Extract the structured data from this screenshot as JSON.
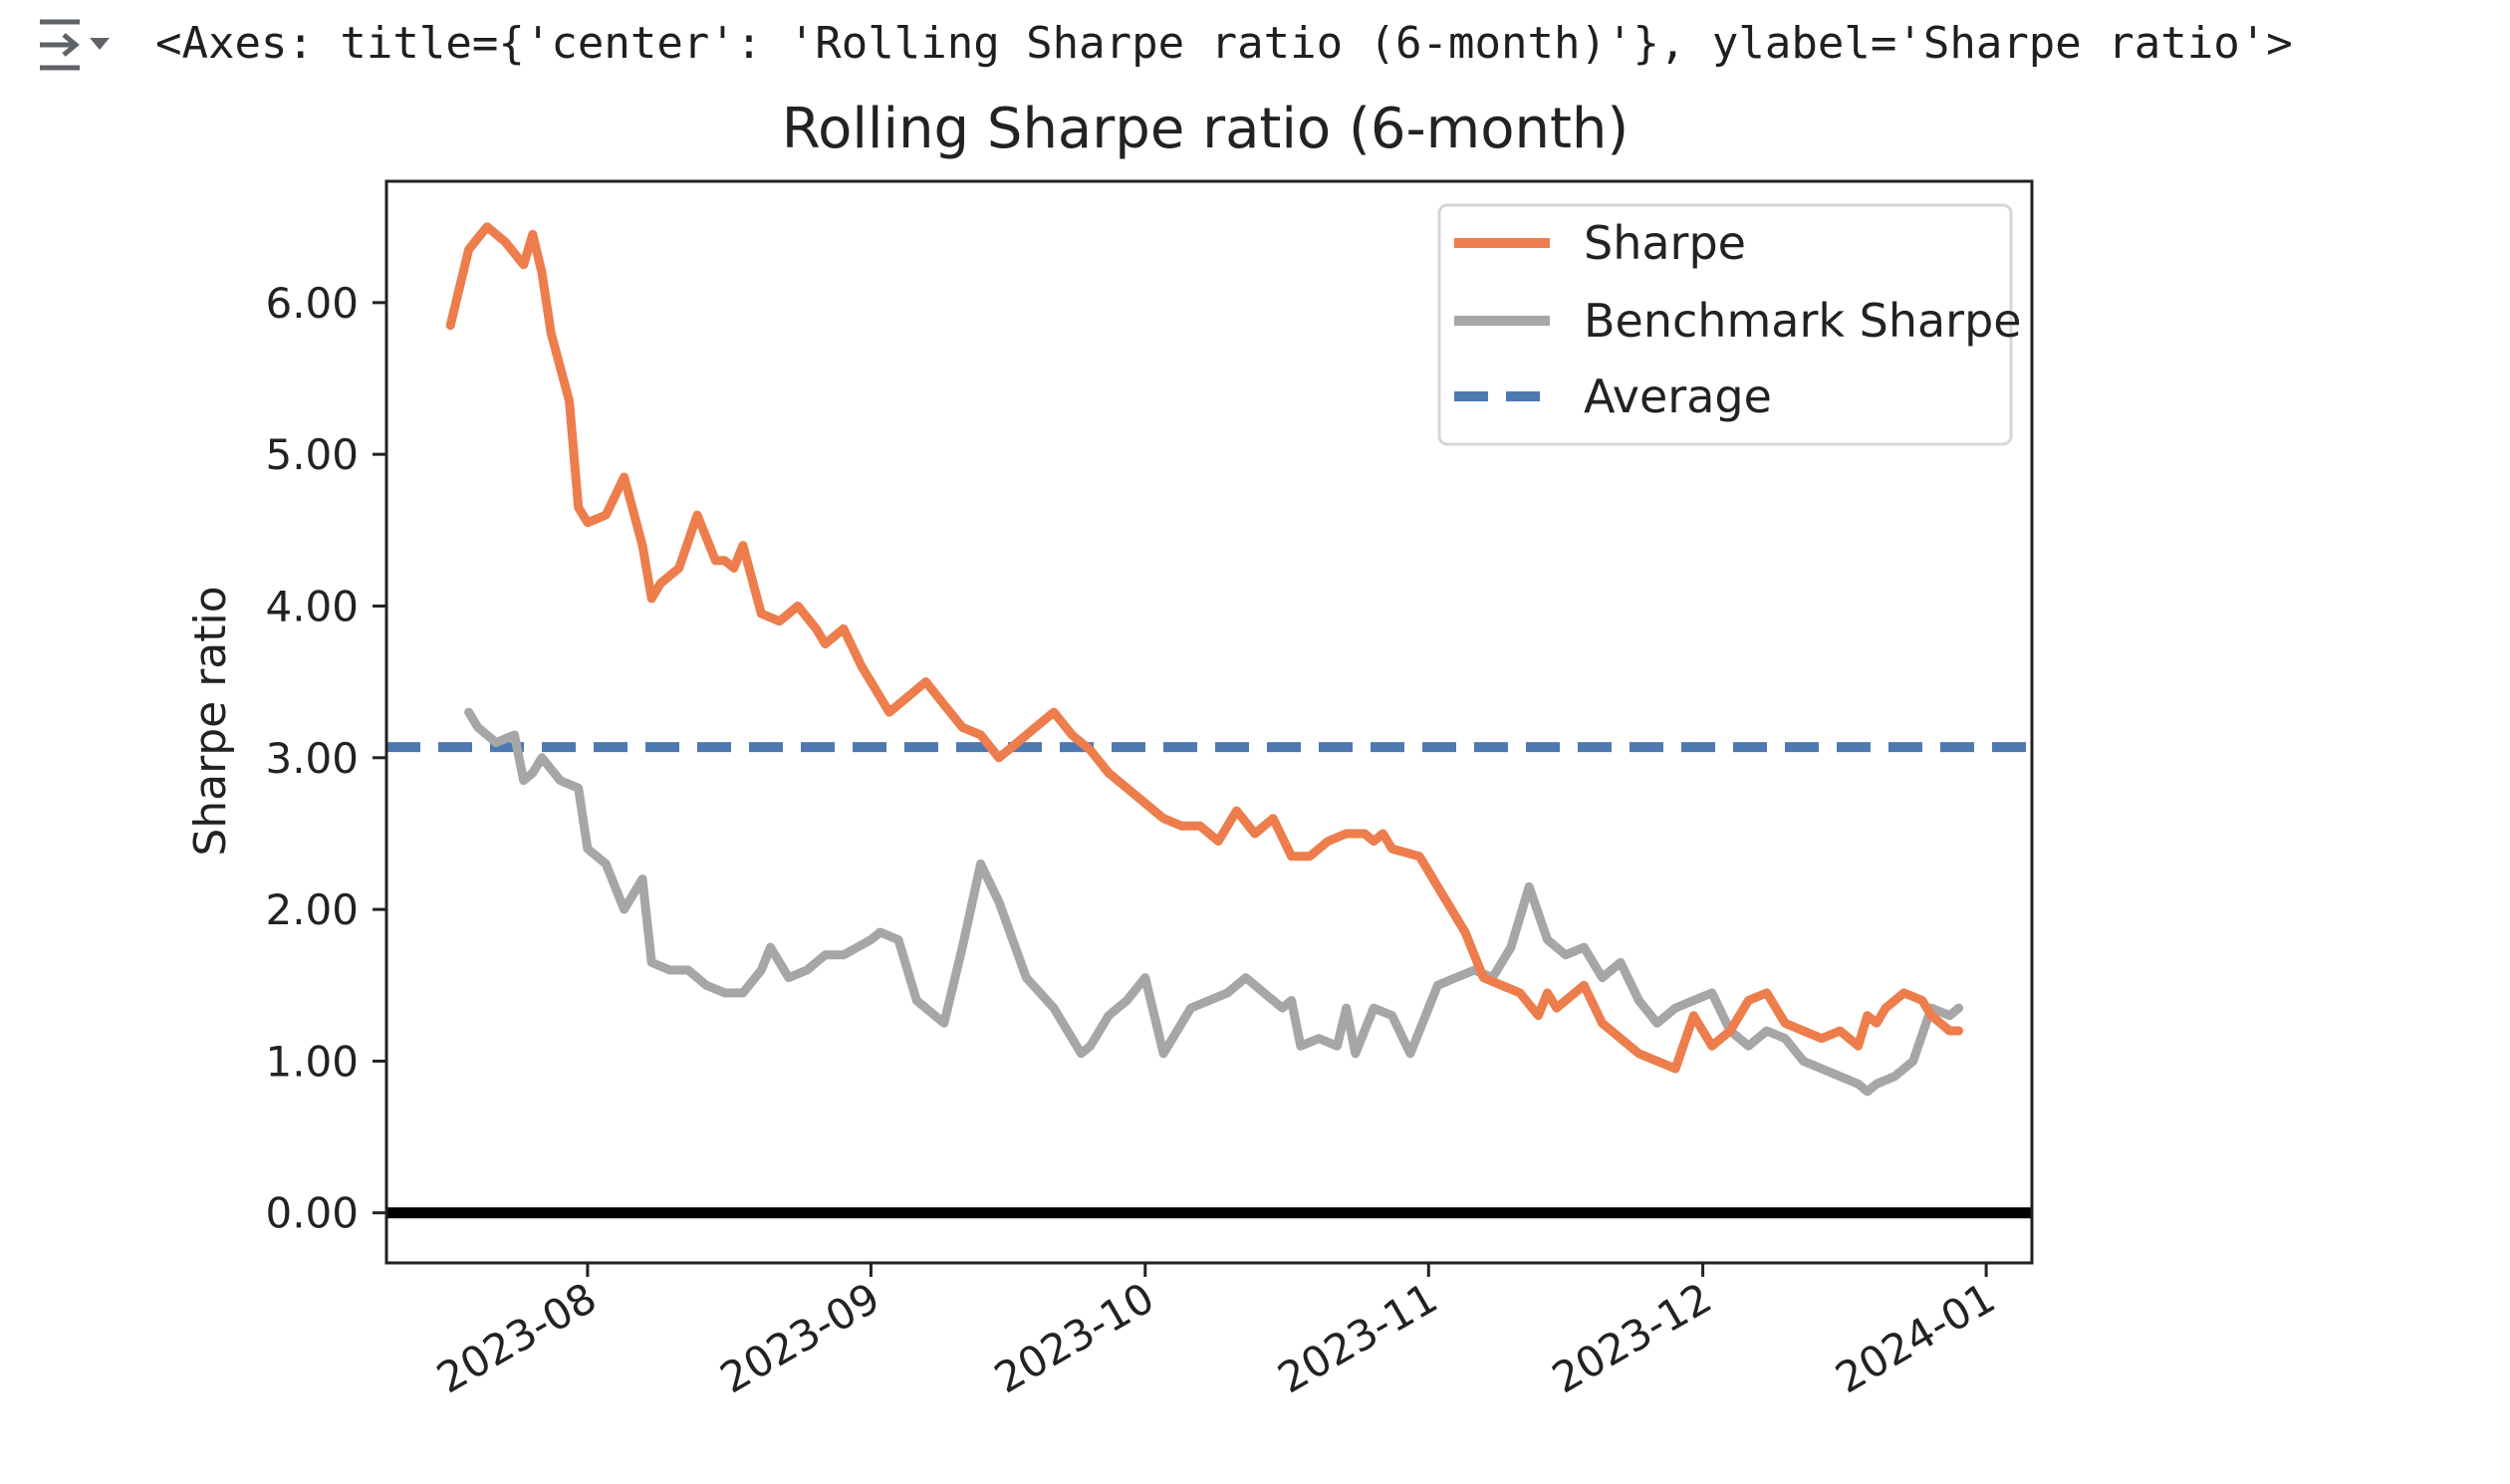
{
  "output": {
    "repr": "<Axes: title={'center': 'Rolling Sharpe ratio (6-month)'}, ylabel='Sharpe ratio'>",
    "icon": "output-toggle-icon"
  },
  "chart_data": {
    "type": "line",
    "title": "Rolling Sharpe ratio (6-month)",
    "xlabel": "",
    "ylabel": "Sharpe ratio",
    "xlim": [
      "2023-07-10",
      "2024-01-06"
    ],
    "ylim": [
      -0.33,
      6.8
    ],
    "x_ticks": [
      "2023-08-01",
      "2023-09-01",
      "2023-10-01",
      "2023-11-01",
      "2023-12-01",
      "2024-01-01"
    ],
    "x_tick_labels": [
      "2023-08",
      "2023-09",
      "2023-10",
      "2023-11",
      "2023-12",
      "2024-01"
    ],
    "y_ticks": [
      0,
      1,
      2,
      3,
      4,
      5,
      6
    ],
    "y_tick_labels": [
      "0.00",
      "1.00",
      "2.00",
      "3.00",
      "4.00",
      "5.00",
      "6.00"
    ],
    "grid": false,
    "legend": "top-right",
    "zero_line": 0,
    "colors": {
      "sharpe": "#ed7d4c",
      "benchmark": "#a6a6a6",
      "average": "#4e79b0",
      "zero": "#000000"
    },
    "series": [
      {
        "name": "Sharpe",
        "key": "sharpe",
        "x": [
          "2023-07-17",
          "2023-07-19",
          "2023-07-21",
          "2023-07-23",
          "2023-07-25",
          "2023-07-26",
          "2023-07-27",
          "2023-07-28",
          "2023-07-30",
          "2023-07-31",
          "2023-08-01",
          "2023-08-03",
          "2023-08-05",
          "2023-08-07",
          "2023-08-08",
          "2023-08-09",
          "2023-08-11",
          "2023-08-13",
          "2023-08-15",
          "2023-08-16",
          "2023-08-17",
          "2023-08-18",
          "2023-08-20",
          "2023-08-22",
          "2023-08-24",
          "2023-08-26",
          "2023-08-27",
          "2023-08-29",
          "2023-08-31",
          "2023-09-01",
          "2023-09-03",
          "2023-09-04",
          "2023-09-07",
          "2023-09-09",
          "2023-09-11",
          "2023-09-13",
          "2023-09-15",
          "2023-09-17",
          "2023-09-19",
          "2023-09-21",
          "2023-09-23",
          "2023-09-25",
          "2023-09-27",
          "2023-10-01",
          "2023-10-03",
          "2023-10-05",
          "2023-10-07",
          "2023-10-09",
          "2023-10-11",
          "2023-10-13",
          "2023-10-15",
          "2023-10-17",
          "2023-10-19",
          "2023-10-21",
          "2023-10-23",
          "2023-10-25",
          "2023-10-26",
          "2023-10-27",
          "2023-10-28",
          "2023-10-31",
          "2023-11-01",
          "2023-11-03",
          "2023-11-05",
          "2023-11-07",
          "2023-11-09",
          "2023-11-11",
          "2023-11-13",
          "2023-11-14",
          "2023-11-15",
          "2023-11-16",
          "2023-11-18",
          "2023-11-20",
          "2023-11-22",
          "2023-11-24",
          "2023-11-26",
          "2023-11-28",
          "2023-11-30",
          "2023-12-02",
          "2023-12-04",
          "2023-12-05",
          "2023-12-06",
          "2023-12-08",
          "2023-12-09",
          "2023-12-10",
          "2023-12-12",
          "2023-12-14",
          "2023-12-16",
          "2023-12-18",
          "2023-12-19",
          "2023-12-20",
          "2023-12-21",
          "2023-12-23",
          "2023-12-25",
          "2023-12-26",
          "2023-12-27",
          "2023-12-28",
          "2023-12-29"
        ],
        "values": [
          5.85,
          6.35,
          6.5,
          6.4,
          6.25,
          6.45,
          6.2,
          5.8,
          5.35,
          4.65,
          4.55,
          4.6,
          4.85,
          4.4,
          4.05,
          4.15,
          4.25,
          4.6,
          4.3,
          4.3,
          4.25,
          4.4,
          3.95,
          3.9,
          4.0,
          3.85,
          3.75,
          3.85,
          3.6,
          3.5,
          3.3,
          3.35,
          3.5,
          3.35,
          3.2,
          3.15,
          3.0,
          3.1,
          3.2,
          3.3,
          3.15,
          3.05,
          2.9,
          2.7,
          2.6,
          2.55,
          2.55,
          2.45,
          2.65,
          2.5,
          2.6,
          2.35,
          2.35,
          2.45,
          2.5,
          2.5,
          2.45,
          2.5,
          2.4,
          2.35,
          2.25,
          2.05,
          1.85,
          1.55,
          1.5,
          1.45,
          1.3,
          1.45,
          1.35,
          1.4,
          1.5,
          1.25,
          1.15,
          1.05,
          1.0,
          0.95,
          1.3,
          1.1,
          1.2,
          1.3,
          1.4,
          1.45,
          1.35,
          1.25,
          1.2,
          1.15,
          1.2,
          1.1,
          1.3,
          1.25,
          1.35,
          1.45,
          1.4,
          1.3,
          1.25,
          1.2,
          1.2
        ]
      },
      {
        "name": "Benchmark Sharpe",
        "key": "benchmark",
        "x": [
          "2023-07-19",
          "2023-07-20",
          "2023-07-22",
          "2023-07-24",
          "2023-07-25",
          "2023-07-26",
          "2023-07-27",
          "2023-07-29",
          "2023-07-31",
          "2023-08-01",
          "2023-08-03",
          "2023-08-05",
          "2023-08-07",
          "2023-08-08",
          "2023-08-10",
          "2023-08-12",
          "2023-08-14",
          "2023-08-16",
          "2023-08-18",
          "2023-08-20",
          "2023-08-21",
          "2023-08-23",
          "2023-08-25",
          "2023-08-27",
          "2023-08-28",
          "2023-08-29",
          "2023-09-01",
          "2023-09-02",
          "2023-09-04",
          "2023-09-06",
          "2023-09-09",
          "2023-09-11",
          "2023-09-13",
          "2023-09-15",
          "2023-09-18",
          "2023-09-21",
          "2023-09-24",
          "2023-09-25",
          "2023-09-27",
          "2023-09-29",
          "2023-10-01",
          "2023-10-03",
          "2023-10-06",
          "2023-10-08",
          "2023-10-10",
          "2023-10-12",
          "2023-10-14",
          "2023-10-16",
          "2023-10-17",
          "2023-10-18",
          "2023-10-20",
          "2023-10-22",
          "2023-10-23",
          "2023-10-24",
          "2023-10-26",
          "2023-10-28",
          "2023-10-30",
          "2023-11-02",
          "2023-11-04",
          "2023-11-06",
          "2023-11-08",
          "2023-11-10",
          "2023-11-12",
          "2023-11-14",
          "2023-11-16",
          "2023-11-18",
          "2023-11-20",
          "2023-11-22",
          "2023-11-24",
          "2023-11-26",
          "2023-11-28",
          "2023-11-30",
          "2023-12-02",
          "2023-12-04",
          "2023-12-06",
          "2023-12-08",
          "2023-12-10",
          "2023-12-12",
          "2023-12-14",
          "2023-12-16",
          "2023-12-18",
          "2023-12-19",
          "2023-12-20",
          "2023-12-22",
          "2023-12-24",
          "2023-12-26",
          "2023-12-28",
          "2023-12-29"
        ],
        "values": [
          3.3,
          3.2,
          3.1,
          3.15,
          2.85,
          2.9,
          3.0,
          2.85,
          2.8,
          2.4,
          2.3,
          2.0,
          2.2,
          1.65,
          1.6,
          1.6,
          1.5,
          1.45,
          1.45,
          1.6,
          1.75,
          1.55,
          1.6,
          1.7,
          1.7,
          1.7,
          1.8,
          1.85,
          1.8,
          1.4,
          1.25,
          1.75,
          2.3,
          2.05,
          1.55,
          1.35,
          1.05,
          1.1,
          1.3,
          1.4,
          1.55,
          1.05,
          1.35,
          1.4,
          1.45,
          1.55,
          1.45,
          1.35,
          1.4,
          1.1,
          1.15,
          1.1,
          1.35,
          1.05,
          1.35,
          1.3,
          1.05,
          1.5,
          1.55,
          1.6,
          1.55,
          1.75,
          2.15,
          1.8,
          1.7,
          1.75,
          1.55,
          1.65,
          1.4,
          1.25,
          1.35,
          1.4,
          1.45,
          1.2,
          1.1,
          1.2,
          1.15,
          1.0,
          0.95,
          0.9,
          0.85,
          0.8,
          0.85,
          0.9,
          1.0,
          1.35,
          1.3,
          1.35
        ]
      },
      {
        "name": "Average",
        "key": "average",
        "style": "dashed",
        "value": 3.07
      }
    ]
  }
}
